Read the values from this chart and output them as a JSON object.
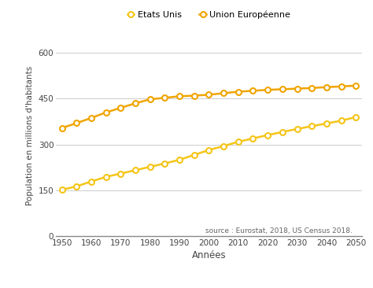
{
  "years": [
    1950,
    1955,
    1960,
    1965,
    1970,
    1975,
    1980,
    1985,
    1990,
    1995,
    2000,
    2005,
    2010,
    2015,
    2020,
    2025,
    2030,
    2035,
    2040,
    2045,
    2050
  ],
  "etats_unis": [
    152,
    163,
    179,
    194,
    205,
    216,
    227,
    238,
    250,
    266,
    282,
    295,
    309,
    320,
    331,
    341,
    351,
    360,
    369,
    378,
    390
  ],
  "union_europeenne": [
    354,
    370,
    387,
    405,
    420,
    435,
    448,
    453,
    458,
    460,
    463,
    468,
    473,
    476,
    479,
    481,
    483,
    485,
    488,
    490,
    493
  ],
  "eu_color": "#F0A500",
  "us_color": "#F5C518",
  "marker": "o",
  "marker_facecolor": "white",
  "legend_us": "Etats Unis",
  "legend_eu": "Union Européenne",
  "ylabel": "Population en millions d'habitants",
  "xlabel": "Années",
  "source_text": "source : Eurostat, 2018, US Census 2018.",
  "yticks": [
    0,
    150,
    300,
    450,
    600
  ],
  "ylim": [
    0,
    660
  ],
  "xlim": [
    1948,
    2052
  ],
  "xticks": [
    1950,
    1960,
    1970,
    1980,
    1990,
    2000,
    2010,
    2020,
    2030,
    2040,
    2050
  ],
  "background_color": "#ffffff",
  "grid_color": "#cccccc"
}
